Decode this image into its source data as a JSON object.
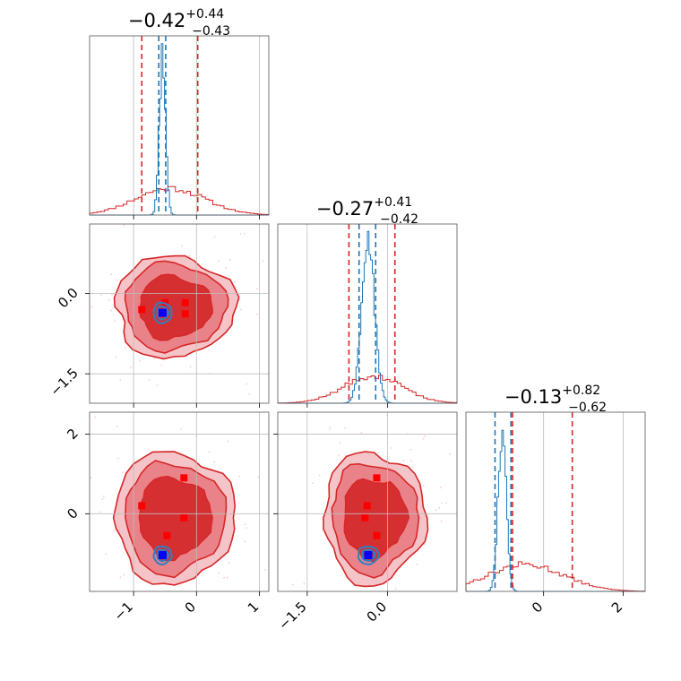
{
  "chart_data": {
    "type": "corner",
    "parameters": [
      {
        "range": [
          -1.7,
          1.15
        ],
        "ticks": [
          -1,
          0,
          1
        ],
        "tick_labels": [
          "−1",
          "0",
          "1"
        ],
        "title": {
          "median": "−0.42",
          "plus": "+0.44",
          "minus": "−0.43"
        }
      },
      {
        "range": [
          -2.05,
          1.3
        ],
        "ticks": [
          -1.5,
          0.0
        ],
        "tick_labels": [
          "−1.5",
          "0.0"
        ],
        "title": {
          "median": "−0.27",
          "plus": "+0.41",
          "minus": "−0.42"
        }
      },
      {
        "range": [
          -1.95,
          2.55
        ],
        "ticks": [
          0,
          2
        ],
        "tick_labels": [
          "0",
          "2"
        ],
        "title": {
          "median": "−0.13",
          "plus": "+0.82",
          "minus": "−0.62"
        }
      }
    ],
    "series": [
      {
        "name": "",
        "color": "#d62728",
        "quantile_lines": [
          [
            -0.87,
            0.02
          ],
          [
            -0.72,
            0.14
          ],
          [
            -0.78,
            0.72
          ]
        ],
        "center": [
          -0.35,
          -0.25,
          -0.1
        ],
        "spread": [
          0.55,
          0.55,
          0.95
        ],
        "histograms_peak_at": [
          -0.42,
          -0.27,
          -0.45
        ]
      },
      {
        "name": "",
        "color": "#1f77b4",
        "quantile_lines": [
          [
            -0.6,
            -0.49
          ],
          [
            -0.53,
            -0.22
          ],
          [
            -1.22,
            -0.82
          ]
        ],
        "center": [
          -0.54,
          -0.36,
          -1.04
        ],
        "spread": [
          0.05,
          0.12,
          0.1
        ]
      }
    ],
    "red_markers": {
      "p1_p2": [
        [
          -0.87,
          -0.3
        ],
        [
          -0.5,
          -0.17
        ],
        [
          -0.18,
          -0.17
        ],
        [
          -0.18,
          -0.38
        ]
      ],
      "p1_p3": [
        [
          -0.87,
          0.2
        ],
        [
          -0.2,
          0.9
        ],
        [
          -0.2,
          -0.1
        ],
        [
          -0.47,
          -0.55
        ]
      ],
      "p2_p3": [
        [
          -0.2,
          0.9
        ],
        [
          -0.38,
          0.2
        ],
        [
          -0.42,
          -0.1
        ],
        [
          -0.2,
          -0.55
        ]
      ]
    },
    "blue_markers": {
      "p1_p2": [
        [
          -0.54,
          -0.36
        ]
      ],
      "p1_p3": [
        [
          -0.54,
          -1.04
        ]
      ],
      "p2_p3": [
        [
          -0.36,
          -1.04
        ]
      ]
    }
  }
}
